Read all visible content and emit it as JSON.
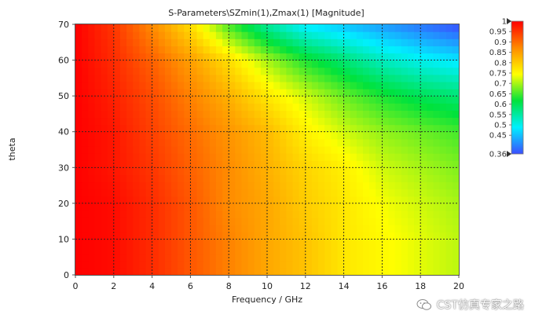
{
  "chart_data": {
    "type": "heatmap",
    "title": "S-Parameters\\SZmin(1),Zmax(1) [Magnitude]",
    "xlabel": "Frequency / GHz",
    "ylabel": "theta",
    "xlim": [
      0,
      20
    ],
    "ylim": [
      0,
      70
    ],
    "x_ticks": [
      "0",
      "2",
      "4",
      "6",
      "8",
      "10",
      "12",
      "14",
      "16",
      "18",
      "20"
    ],
    "y_ticks": [
      "0",
      "10",
      "20",
      "30",
      "40",
      "50",
      "60",
      "70"
    ],
    "grid": true,
    "colorbar": {
      "min": 0.36,
      "max": 1,
      "labels": [
        "1",
        "0.95",
        "0.9",
        "0.85",
        "0.8",
        "0.75",
        "0.7",
        "0.65",
        "0.6",
        "0.55",
        "0.5",
        "0.45",
        "0.36"
      ],
      "label_values": [
        1,
        0.95,
        0.9,
        0.85,
        0.8,
        0.75,
        0.7,
        0.65,
        0.6,
        0.55,
        0.5,
        0.45,
        0.36
      ],
      "colors": [
        "#3b4dff",
        "#00f0ff",
        "#00e23c",
        "#ffff00",
        "#ff8a00",
        "#ff0000"
      ],
      "placement": "right"
    },
    "freq_GHz": [
      0,
      2,
      4,
      6,
      8,
      10,
      12,
      14,
      16,
      18,
      20
    ],
    "theta_values": [
      0,
      10,
      20,
      30,
      40,
      50,
      60,
      70
    ],
    "magnitude": [
      [
        1.0,
        0.99,
        0.96,
        0.92,
        0.88,
        0.84,
        0.81,
        0.77,
        0.75,
        0.73,
        0.71
      ],
      [
        1.0,
        0.99,
        0.96,
        0.92,
        0.88,
        0.84,
        0.81,
        0.77,
        0.75,
        0.73,
        0.71
      ],
      [
        1.0,
        0.99,
        0.96,
        0.92,
        0.87,
        0.84,
        0.8,
        0.77,
        0.74,
        0.72,
        0.7
      ],
      [
        1.0,
        0.98,
        0.95,
        0.91,
        0.87,
        0.83,
        0.79,
        0.76,
        0.72,
        0.7,
        0.68
      ],
      [
        1.0,
        0.98,
        0.94,
        0.9,
        0.86,
        0.82,
        0.76,
        0.72,
        0.69,
        0.67,
        0.65
      ],
      [
        1.0,
        0.97,
        0.93,
        0.88,
        0.83,
        0.77,
        0.72,
        0.67,
        0.63,
        0.6,
        0.58
      ],
      [
        1.0,
        0.96,
        0.91,
        0.85,
        0.78,
        0.7,
        0.63,
        0.58,
        0.53,
        0.5,
        0.48
      ],
      [
        1.0,
        0.95,
        0.87,
        0.78,
        0.65,
        0.55,
        0.48,
        0.45,
        0.42,
        0.39,
        0.36
      ]
    ]
  },
  "watermark": {
    "text": "CST仿真专家之路",
    "icon": "wechat-icon"
  }
}
